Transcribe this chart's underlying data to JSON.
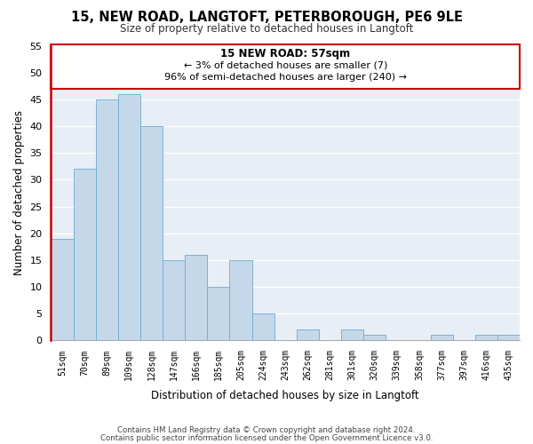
{
  "title": "15, NEW ROAD, LANGTOFT, PETERBOROUGH, PE6 9LE",
  "subtitle": "Size of property relative to detached houses in Langtoft",
  "xlabel": "Distribution of detached houses by size in Langtoft",
  "ylabel": "Number of detached properties",
  "bar_color": "#c5d8ea",
  "bar_edge_color": "#6aaad4",
  "highlight_color": "#cc0000",
  "categories": [
    "51sqm",
    "70sqm",
    "89sqm",
    "109sqm",
    "128sqm",
    "147sqm",
    "166sqm",
    "185sqm",
    "205sqm",
    "224sqm",
    "243sqm",
    "262sqm",
    "281sqm",
    "301sqm",
    "320sqm",
    "339sqm",
    "358sqm",
    "377sqm",
    "397sqm",
    "416sqm",
    "435sqm"
  ],
  "values": [
    19,
    32,
    45,
    46,
    40,
    15,
    16,
    10,
    15,
    5,
    0,
    2,
    0,
    2,
    1,
    0,
    0,
    1,
    0,
    1,
    1
  ],
  "ylim": [
    0,
    55
  ],
  "yticks": [
    0,
    5,
    10,
    15,
    20,
    25,
    30,
    35,
    40,
    45,
    50,
    55
  ],
  "annotation_title": "15 NEW ROAD: 57sqm",
  "annotation_line1": "← 3% of detached houses are smaller (7)",
  "annotation_line2": "96% of semi-detached houses are larger (240) →",
  "footer_line1": "Contains HM Land Registry data © Crown copyright and database right 2024.",
  "footer_line2": "Contains public sector information licensed under the Open Government Licence v3.0.",
  "bg_color": "#e8eef5"
}
